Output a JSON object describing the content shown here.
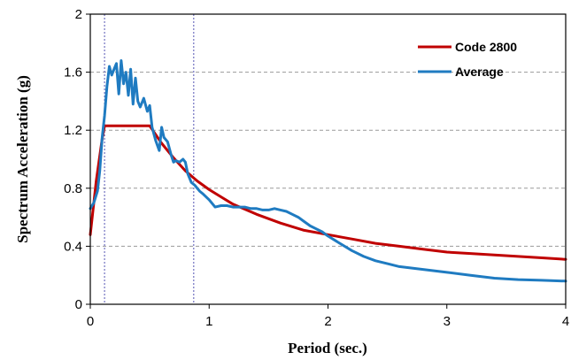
{
  "chart_data": {
    "type": "line",
    "xlabel": "Period (sec.)",
    "ylabel": "Spectrum Acceleration (g)",
    "xlim": [
      0,
      4
    ],
    "ylim": [
      0,
      2
    ],
    "xticks": [
      "0",
      "1",
      "2",
      "3",
      "4"
    ],
    "yticks": [
      "0",
      "0.4",
      "0.8",
      "1.2",
      "1.6",
      "2"
    ],
    "grid": "horizontal dashed",
    "legend_position": "top-right",
    "reference_lines_x": [
      0.12,
      0.87
    ],
    "colors": {
      "code": "#c00000",
      "average": "#1f7bc1",
      "grid": "#9a9a9a",
      "refline": "#7070c0"
    },
    "series": [
      {
        "name": "Code 2800",
        "x": [
          0,
          0.05,
          0.1,
          0.12,
          0.2,
          0.3,
          0.4,
          0.5,
          0.55,
          0.6,
          0.7,
          0.8,
          0.9,
          1.0,
          1.2,
          1.4,
          1.6,
          1.8,
          2.0,
          2.2,
          2.4,
          2.6,
          2.8,
          3.0,
          3.2,
          3.4,
          3.6,
          3.8,
          4.0
        ],
        "values": [
          0.48,
          0.85,
          1.14,
          1.23,
          1.23,
          1.23,
          1.23,
          1.23,
          1.17,
          1.11,
          1.01,
          0.92,
          0.85,
          0.79,
          0.69,
          0.62,
          0.56,
          0.51,
          0.48,
          0.45,
          0.42,
          0.4,
          0.38,
          0.36,
          0.35,
          0.34,
          0.33,
          0.32,
          0.31
        ]
      },
      {
        "name": "Average",
        "x": [
          0,
          0.03,
          0.06,
          0.08,
          0.1,
          0.12,
          0.14,
          0.16,
          0.18,
          0.2,
          0.22,
          0.24,
          0.26,
          0.28,
          0.3,
          0.32,
          0.34,
          0.36,
          0.38,
          0.4,
          0.42,
          0.45,
          0.48,
          0.5,
          0.52,
          0.55,
          0.58,
          0.6,
          0.62,
          0.65,
          0.68,
          0.7,
          0.72,
          0.75,
          0.78,
          0.8,
          0.82,
          0.85,
          0.88,
          0.9,
          0.92,
          0.95,
          1.0,
          1.05,
          1.1,
          1.15,
          1.2,
          1.25,
          1.3,
          1.35,
          1.4,
          1.45,
          1.5,
          1.55,
          1.6,
          1.65,
          1.7,
          1.75,
          1.8,
          1.85,
          1.9,
          1.95,
          2.0,
          2.1,
          2.2,
          2.3,
          2.4,
          2.5,
          2.6,
          2.7,
          2.8,
          2.9,
          3.0,
          3.2,
          3.4,
          3.6,
          3.8,
          4.0
        ],
        "values": [
          0.66,
          0.7,
          0.78,
          0.92,
          1.15,
          1.3,
          1.5,
          1.64,
          1.58,
          1.62,
          1.66,
          1.45,
          1.68,
          1.52,
          1.6,
          1.44,
          1.62,
          1.38,
          1.56,
          1.4,
          1.36,
          1.42,
          1.33,
          1.37,
          1.22,
          1.13,
          1.06,
          1.22,
          1.15,
          1.12,
          1.03,
          0.98,
          0.99,
          0.98,
          1.0,
          0.98,
          0.9,
          0.84,
          0.82,
          0.8,
          0.78,
          0.76,
          0.72,
          0.67,
          0.68,
          0.68,
          0.67,
          0.67,
          0.67,
          0.66,
          0.66,
          0.65,
          0.65,
          0.66,
          0.65,
          0.64,
          0.62,
          0.6,
          0.57,
          0.54,
          0.52,
          0.5,
          0.47,
          0.42,
          0.37,
          0.33,
          0.3,
          0.28,
          0.26,
          0.25,
          0.24,
          0.23,
          0.22,
          0.2,
          0.18,
          0.17,
          0.165,
          0.16
        ]
      }
    ]
  }
}
